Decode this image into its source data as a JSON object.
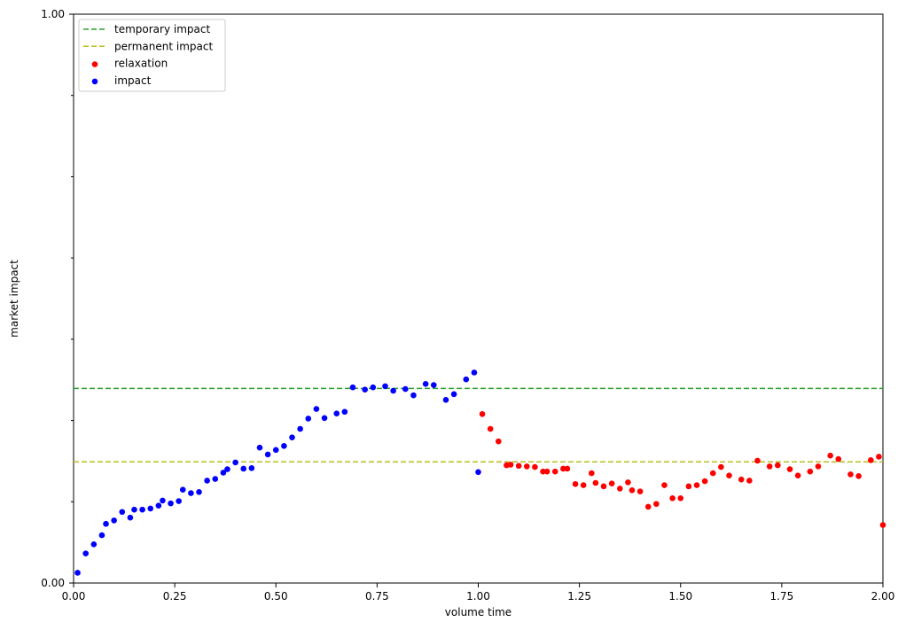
{
  "chart_data": {
    "type": "scatter",
    "title": "",
    "xlabel": "volume time",
    "ylabel": "market impact",
    "xlim": [
      0.0,
      2.0
    ],
    "ylim": [
      0.0,
      1.0
    ],
    "x_ticks": [
      0.0,
      0.25,
      0.5,
      0.75,
      1.0,
      1.25,
      1.5,
      1.75,
      2.0
    ],
    "x_tick_labels": [
      "0.00",
      "0.25",
      "0.50",
      "0.75",
      "1.00",
      "1.25",
      "1.50",
      "1.75",
      "2.00"
    ],
    "y_ticks": [
      0.0,
      1.0
    ],
    "y_tick_labels": [
      "0.00",
      "1.00"
    ],
    "y_minor_ticks": [
      0.142857,
      0.285714,
      0.428571,
      0.571429,
      0.714286,
      0.857143
    ],
    "grid": false,
    "legend_position": "upper-left",
    "lines": [
      {
        "name": "temporary impact",
        "y": 0.342,
        "color": "#2ca02c",
        "style": "dashed"
      },
      {
        "name": "permanent impact",
        "y": 0.213,
        "color": "#bcbd22",
        "style": "dashed"
      }
    ],
    "series": [
      {
        "name": "relaxation",
        "color": "#ff0000",
        "x": [
          1.01,
          1.03,
          1.05,
          1.07,
          1.08,
          1.1,
          1.12,
          1.14,
          1.16,
          1.17,
          1.19,
          1.21,
          1.22,
          1.24,
          1.26,
          1.28,
          1.29,
          1.31,
          1.33,
          1.35,
          1.37,
          1.38,
          1.4,
          1.42,
          1.44,
          1.46,
          1.48,
          1.5,
          1.52,
          1.54,
          1.56,
          1.58,
          1.6,
          1.62,
          1.65,
          1.67,
          1.69,
          1.72,
          1.74,
          1.77,
          1.79,
          1.82,
          1.84,
          1.87,
          1.89,
          1.92,
          1.94,
          1.97,
          1.99,
          2.0
        ],
        "y": [
          0.297,
          0.271,
          0.249,
          0.207,
          0.208,
          0.206,
          0.205,
          0.204,
          0.196,
          0.196,
          0.196,
          0.201,
          0.201,
          0.174,
          0.172,
          0.193,
          0.176,
          0.17,
          0.175,
          0.166,
          0.177,
          0.163,
          0.161,
          0.134,
          0.139,
          0.172,
          0.149,
          0.149,
          0.17,
          0.172,
          0.179,
          0.193,
          0.204,
          0.189,
          0.182,
          0.18,
          0.215,
          0.205,
          0.207,
          0.2,
          0.189,
          0.196,
          0.205,
          0.224,
          0.218,
          0.191,
          0.188,
          0.216,
          0.222,
          0.102
        ]
      },
      {
        "name": "impact",
        "color": "#0000ff",
        "x": [
          0.01,
          0.03,
          0.05,
          0.07,
          0.08,
          0.1,
          0.12,
          0.14,
          0.15,
          0.17,
          0.19,
          0.21,
          0.22,
          0.24,
          0.26,
          0.27,
          0.29,
          0.31,
          0.33,
          0.35,
          0.37,
          0.38,
          0.4,
          0.42,
          0.44,
          0.46,
          0.48,
          0.5,
          0.52,
          0.54,
          0.56,
          0.58,
          0.6,
          0.62,
          0.65,
          0.67,
          0.69,
          0.72,
          0.74,
          0.77,
          0.79,
          0.82,
          0.84,
          0.87,
          0.89,
          0.92,
          0.94,
          0.97,
          0.99,
          1.0
        ],
        "y": [
          0.018,
          0.052,
          0.068,
          0.084,
          0.104,
          0.11,
          0.125,
          0.115,
          0.129,
          0.129,
          0.131,
          0.136,
          0.145,
          0.14,
          0.144,
          0.164,
          0.158,
          0.16,
          0.18,
          0.183,
          0.194,
          0.2,
          0.212,
          0.201,
          0.202,
          0.238,
          0.226,
          0.234,
          0.241,
          0.256,
          0.271,
          0.289,
          0.306,
          0.29,
          0.298,
          0.301,
          0.344,
          0.34,
          0.344,
          0.346,
          0.338,
          0.341,
          0.33,
          0.35,
          0.348,
          0.322,
          0.332,
          0.358,
          0.37,
          0.195
        ]
      }
    ],
    "legend": [
      {
        "label": "temporary impact",
        "kind": "line",
        "color": "#2ca02c"
      },
      {
        "label": "permanent impact",
        "kind": "line",
        "color": "#bcbd22"
      },
      {
        "label": "relaxation",
        "kind": "marker",
        "color": "#ff0000"
      },
      {
        "label": "impact",
        "kind": "marker",
        "color": "#0000ff"
      }
    ]
  }
}
